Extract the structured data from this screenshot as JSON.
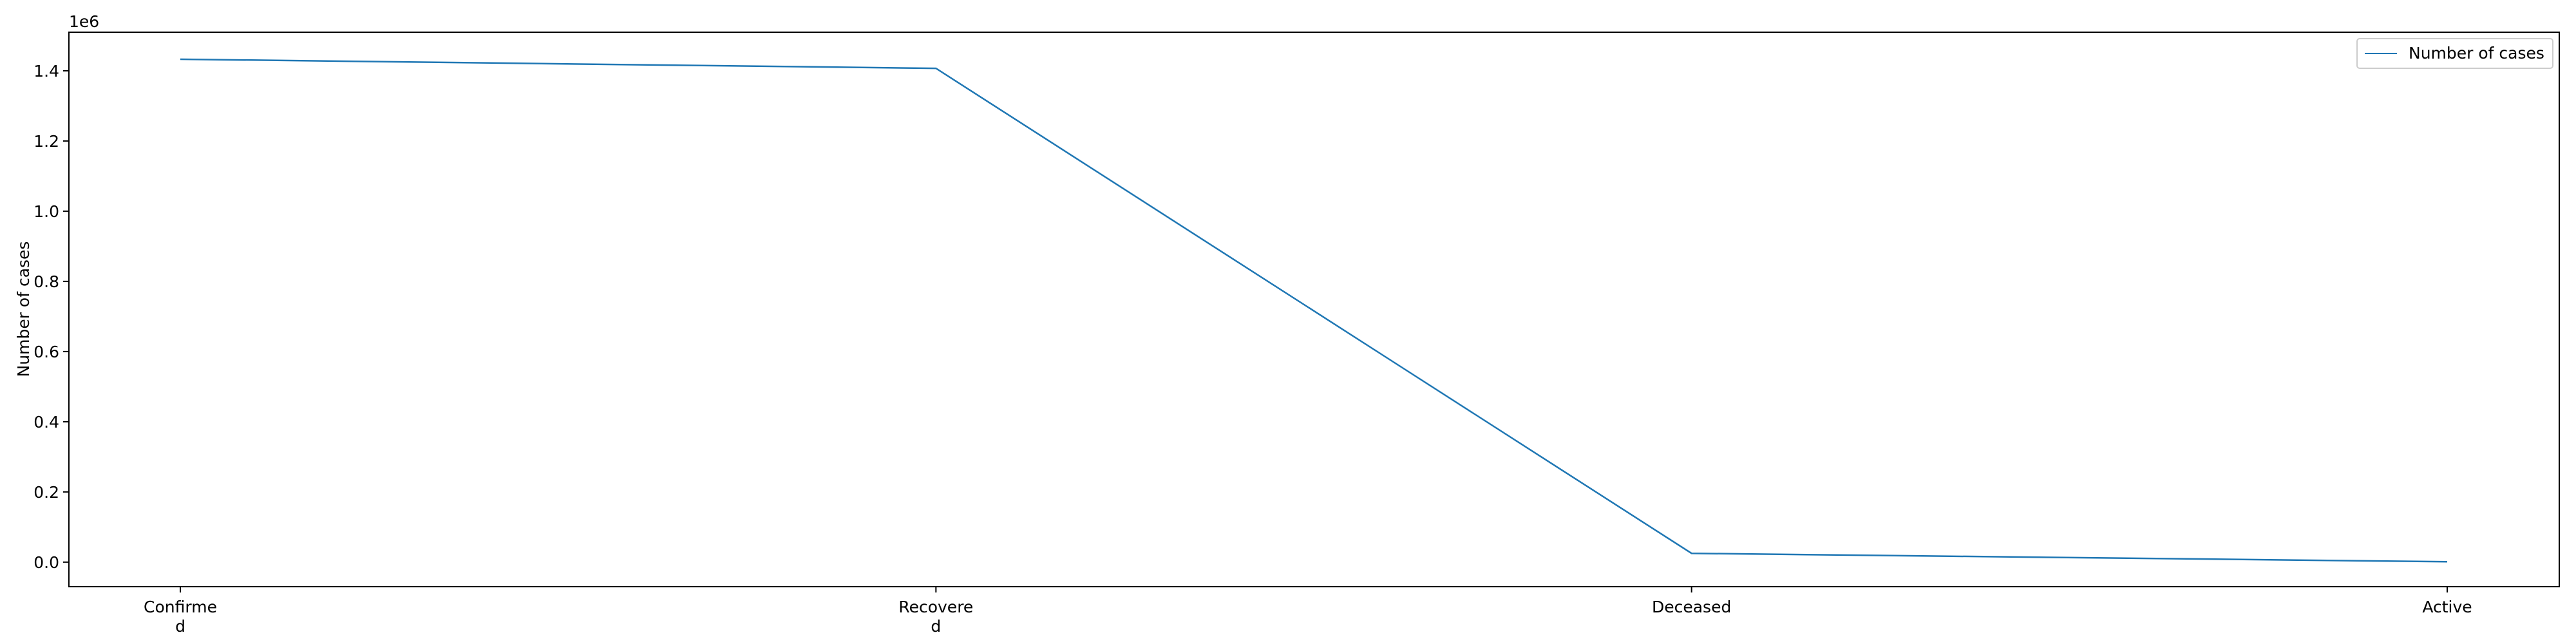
{
  "chart_data": {
    "type": "line",
    "categories": [
      "Confirmed",
      "Recovered",
      "Deceased",
      "Active"
    ],
    "category_tick_lines": [
      [
        "Confirme",
        "d"
      ],
      [
        "Recovere",
        "d"
      ],
      [
        "Deceased"
      ],
      [
        "Active"
      ]
    ],
    "series": [
      {
        "name": "Number of cases",
        "values": [
          1433000,
          1407000,
          25000,
          1000
        ],
        "color": "#1f77b4"
      }
    ],
    "ylabel": "Number of cases",
    "xlabel": "",
    "y_scale_note": "1e6",
    "ylim": [
      -0.07,
      1.51
    ],
    "yticks": [
      0.0,
      0.2,
      0.4,
      0.6,
      0.8,
      1.0,
      1.2,
      1.4
    ],
    "ytick_labels": [
      "0.0",
      "0.2",
      "0.4",
      "0.6",
      "0.8",
      "1.0",
      "1.2",
      "1.4"
    ],
    "y_multiplier": 1000000,
    "grid": false,
    "legend_position": "top-right"
  }
}
